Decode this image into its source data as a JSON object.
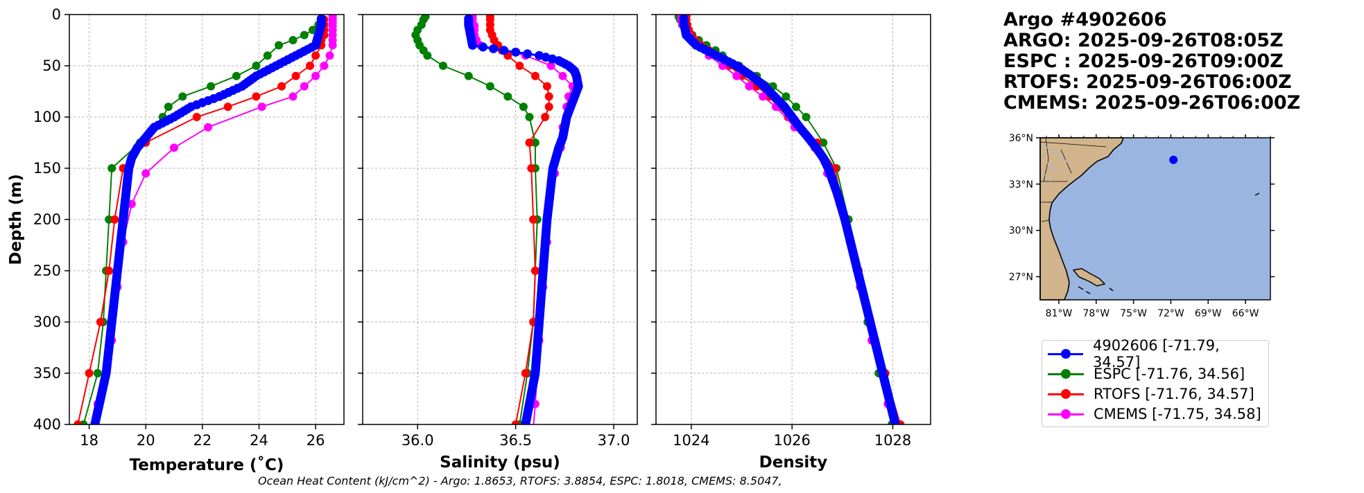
{
  "title": {
    "float": "Argo #4902606",
    "argo_time": "ARGO: 2025-09-26T08:05Z",
    "espc_time": "ESPC : 2025-09-26T09:00Z",
    "rtofs_time": "RTOFS: 2025-09-26T06:00Z",
    "cmems_time": "CMEMS: 2025-09-26T06:00Z"
  },
  "ohc_text": "Ocean Heat Content (kJ/cm^2) - Argo: 1.8653,  RTOFS: 3.8854,  ESPC: 1.8018,  CMEMS: 8.5047,",
  "legend": [
    {
      "label": "4902606 [-71.79, 34.57]",
      "color": "#0000ff"
    },
    {
      "label": "ESPC [-71.76, 34.56]",
      "color": "#008000"
    },
    {
      "label": "RTOFS [-71.76, 34.57]",
      "color": "#ff0000"
    },
    {
      "label": "CMEMS [-71.75, 34.58]",
      "color": "#ff00ff"
    }
  ],
  "colors": {
    "argo": "#0000ff",
    "espc": "#008000",
    "rtofs": "#ff0000",
    "cmems": "#ff00ff",
    "land": "#d2b48c",
    "ocean": "#9ab6e0",
    "grid": "#b0b0b0"
  },
  "chart_data": [
    {
      "type": "line",
      "xlabel": "Temperature (˚C)",
      "ylabel": "Depth (m)",
      "xlim": [
        17.3,
        27.0
      ],
      "ylim": [
        400,
        0
      ],
      "xticks": [
        18,
        20,
        22,
        24,
        26
      ],
      "yticks": [
        0,
        50,
        100,
        150,
        200,
        250,
        300,
        350,
        400
      ],
      "series": [
        {
          "name": "ESPC",
          "key": "espc",
          "depth": [
            5,
            10,
            15,
            20,
            25,
            30,
            40,
            50,
            60,
            70,
            80,
            90,
            100,
            125,
            150,
            200,
            250,
            300,
            350,
            400
          ],
          "values": [
            26.2,
            26.1,
            25.9,
            25.6,
            25.2,
            24.7,
            24.3,
            23.9,
            23.2,
            22.3,
            21.3,
            20.8,
            20.6,
            19.8,
            18.8,
            18.7,
            18.6,
            18.5,
            18.3,
            17.8
          ]
        },
        {
          "name": "RTOFS",
          "key": "rtofs",
          "depth": [
            5,
            10,
            15,
            20,
            25,
            30,
            40,
            50,
            60,
            70,
            80,
            90,
            100,
            125,
            150,
            200,
            250,
            300,
            350,
            400
          ],
          "values": [
            26.3,
            26.3,
            26.3,
            26.3,
            26.2,
            26.2,
            26.0,
            25.8,
            25.3,
            24.8,
            23.9,
            22.9,
            21.8,
            20.0,
            19.2,
            18.9,
            18.7,
            18.4,
            18.0,
            17.6
          ]
        },
        {
          "name": "CMEMS",
          "key": "cmems",
          "depth": [
            1,
            3,
            5,
            8,
            11,
            15,
            20,
            25,
            30,
            40,
            50,
            60,
            70,
            80,
            90,
            110,
            130,
            155,
            185,
            222,
            266,
            318,
            380,
            450
          ],
          "values": [
            26.6,
            26.6,
            26.6,
            26.6,
            26.6,
            26.6,
            26.6,
            26.6,
            26.6,
            26.5,
            26.3,
            26.0,
            25.6,
            25.2,
            24.1,
            22.2,
            21.0,
            20.0,
            19.5,
            19.2,
            19.0,
            18.8,
            18.3,
            18.0
          ]
        },
        {
          "name": "4902606",
          "key": "argo",
          "depth": [
            4,
            10,
            20,
            30,
            40,
            50,
            60,
            70,
            80,
            90,
            100,
            110,
            120,
            130,
            140,
            150,
            175,
            200,
            250,
            300,
            350,
            400
          ],
          "values": [
            26.2,
            26.2,
            26.1,
            26.0,
            25.3,
            24.6,
            23.9,
            23.4,
            22.6,
            21.6,
            21.0,
            20.3,
            20.0,
            19.7,
            19.5,
            19.4,
            19.3,
            19.2,
            19.0,
            18.8,
            18.6,
            18.2
          ]
        }
      ]
    },
    {
      "type": "line",
      "xlabel": "Salinity (psu)",
      "ylabel": "",
      "xlim": [
        35.72,
        37.12
      ],
      "ylim": [
        400,
        0
      ],
      "xticks": [
        36.0,
        36.5,
        37.0
      ],
      "yticks": [
        0,
        50,
        100,
        150,
        200,
        250,
        300,
        350,
        400
      ],
      "series": [
        {
          "name": "ESPC",
          "key": "espc",
          "depth": [
            2,
            5,
            10,
            15,
            20,
            25,
            30,
            35,
            40,
            50,
            60,
            70,
            80,
            90,
            100,
            125,
            150,
            200,
            250,
            300,
            350,
            400
          ],
          "values": [
            36.04,
            36.03,
            36.02,
            36.0,
            35.99,
            36.0,
            36.01,
            36.03,
            36.05,
            36.13,
            36.26,
            36.37,
            36.46,
            36.54,
            36.57,
            36.6,
            36.6,
            36.61,
            36.6,
            36.59,
            36.56,
            36.52
          ]
        },
        {
          "name": "RTOFS",
          "key": "rtofs",
          "depth": [
            2,
            5,
            10,
            15,
            20,
            25,
            30,
            35,
            40,
            50,
            60,
            70,
            80,
            90,
            100,
            125,
            150,
            200,
            250,
            300,
            350,
            400
          ],
          "values": [
            36.37,
            36.37,
            36.37,
            36.37,
            36.38,
            36.39,
            36.41,
            36.43,
            36.46,
            36.52,
            36.6,
            36.66,
            36.67,
            36.67,
            36.65,
            36.57,
            36.58,
            36.59,
            36.6,
            36.59,
            36.55,
            36.5
          ]
        },
        {
          "name": "CMEMS",
          "key": "cmems",
          "depth": [
            1,
            3,
            5,
            8,
            11,
            15,
            20,
            25,
            30,
            40,
            50,
            60,
            70,
            80,
            90,
            110,
            130,
            155,
            185,
            222,
            266,
            318,
            380,
            450
          ],
          "values": [
            36.28,
            36.28,
            36.28,
            36.28,
            36.29,
            36.29,
            36.29,
            36.3,
            36.32,
            36.55,
            36.68,
            36.74,
            36.79,
            36.77,
            36.76,
            36.74,
            36.73,
            36.7,
            36.67,
            36.66,
            36.64,
            36.62,
            36.6,
            36.57
          ]
        },
        {
          "name": "4902606",
          "key": "argo",
          "depth": [
            4,
            10,
            20,
            30,
            35,
            40,
            45,
            50,
            55,
            60,
            70,
            80,
            90,
            100,
            110,
            120,
            130,
            150,
            200,
            250,
            300,
            350,
            400
          ],
          "values": [
            36.26,
            36.26,
            36.27,
            36.28,
            36.44,
            36.62,
            36.72,
            36.77,
            36.8,
            36.81,
            36.82,
            36.8,
            36.78,
            36.76,
            36.75,
            36.74,
            36.72,
            36.69,
            36.66,
            36.64,
            36.62,
            36.6,
            36.55
          ]
        }
      ]
    },
    {
      "type": "line",
      "xlabel": "Density",
      "ylabel": "",
      "xlim": [
        1023.3,
        1028.75
      ],
      "ylim": [
        400,
        0
      ],
      "xticks": [
        1024,
        1026,
        1028
      ],
      "yticks": [
        0,
        50,
        100,
        150,
        200,
        250,
        300,
        350,
        400
      ],
      "series": [
        {
          "name": "ESPC",
          "key": "espc",
          "depth": [
            2,
            5,
            10,
            15,
            20,
            25,
            30,
            35,
            40,
            50,
            60,
            70,
            80,
            90,
            100,
            125,
            150,
            200,
            250,
            300,
            350,
            400
          ],
          "values": [
            1023.75,
            1023.78,
            1023.82,
            1023.9,
            1024.02,
            1024.15,
            1024.3,
            1024.48,
            1024.62,
            1024.95,
            1025.3,
            1025.62,
            1025.88,
            1026.08,
            1026.28,
            1026.62,
            1026.88,
            1027.12,
            1027.3,
            1027.5,
            1027.72,
            1027.98
          ]
        },
        {
          "name": "RTOFS",
          "key": "rtofs",
          "depth": [
            2,
            5,
            10,
            15,
            20,
            25,
            30,
            35,
            40,
            50,
            60,
            70,
            80,
            90,
            100,
            125,
            150,
            200,
            250,
            300,
            350,
            400
          ],
          "values": [
            1023.9,
            1023.9,
            1023.92,
            1023.95,
            1024.0,
            1024.08,
            1024.2,
            1024.35,
            1024.5,
            1024.75,
            1025.0,
            1025.3,
            1025.55,
            1025.72,
            1025.92,
            1026.5,
            1026.85,
            1027.05,
            1027.32,
            1027.55,
            1027.85,
            1028.15
          ]
        },
        {
          "name": "CMEMS",
          "key": "cmems",
          "depth": [
            1,
            3,
            5,
            8,
            11,
            15,
            20,
            25,
            30,
            40,
            50,
            60,
            70,
            80,
            90,
            110,
            130,
            155,
            185,
            222,
            266,
            318,
            380,
            450
          ],
          "values": [
            1023.8,
            1023.8,
            1023.81,
            1023.82,
            1023.84,
            1023.88,
            1023.94,
            1024.02,
            1024.12,
            1024.35,
            1024.62,
            1024.9,
            1025.15,
            1025.42,
            1025.68,
            1026.05,
            1026.45,
            1026.7,
            1026.95,
            1027.15,
            1027.35,
            1027.58,
            1027.9,
            1028.2
          ]
        },
        {
          "name": "4902606",
          "key": "argo",
          "depth": [
            4,
            10,
            20,
            30,
            40,
            50,
            60,
            70,
            80,
            90,
            100,
            110,
            120,
            130,
            140,
            150,
            175,
            200,
            250,
            300,
            350,
            400
          ],
          "values": [
            1023.85,
            1023.86,
            1023.9,
            1024.1,
            1024.5,
            1024.9,
            1025.2,
            1025.45,
            1025.65,
            1025.85,
            1026.0,
            1026.15,
            1026.32,
            1026.48,
            1026.62,
            1026.72,
            1026.9,
            1027.05,
            1027.3,
            1027.55,
            1027.8,
            1028.05
          ]
        }
      ]
    }
  ],
  "map": {
    "lon_labels": [
      "81°W",
      "78°W",
      "75°W",
      "72°W",
      "69°W",
      "66°W"
    ],
    "lat_labels": [
      "36°N",
      "33°N",
      "30°N",
      "27°N"
    ],
    "lon_ticks": [
      -81,
      -78,
      -75,
      -72,
      -69,
      -66
    ],
    "lat_ticks": [
      36,
      33,
      30,
      27
    ],
    "lon_range": [
      -82.5,
      -64.0
    ],
    "lat_range": [
      25.5,
      36.0
    ],
    "float_position": [
      -71.79,
      34.57
    ]
  }
}
